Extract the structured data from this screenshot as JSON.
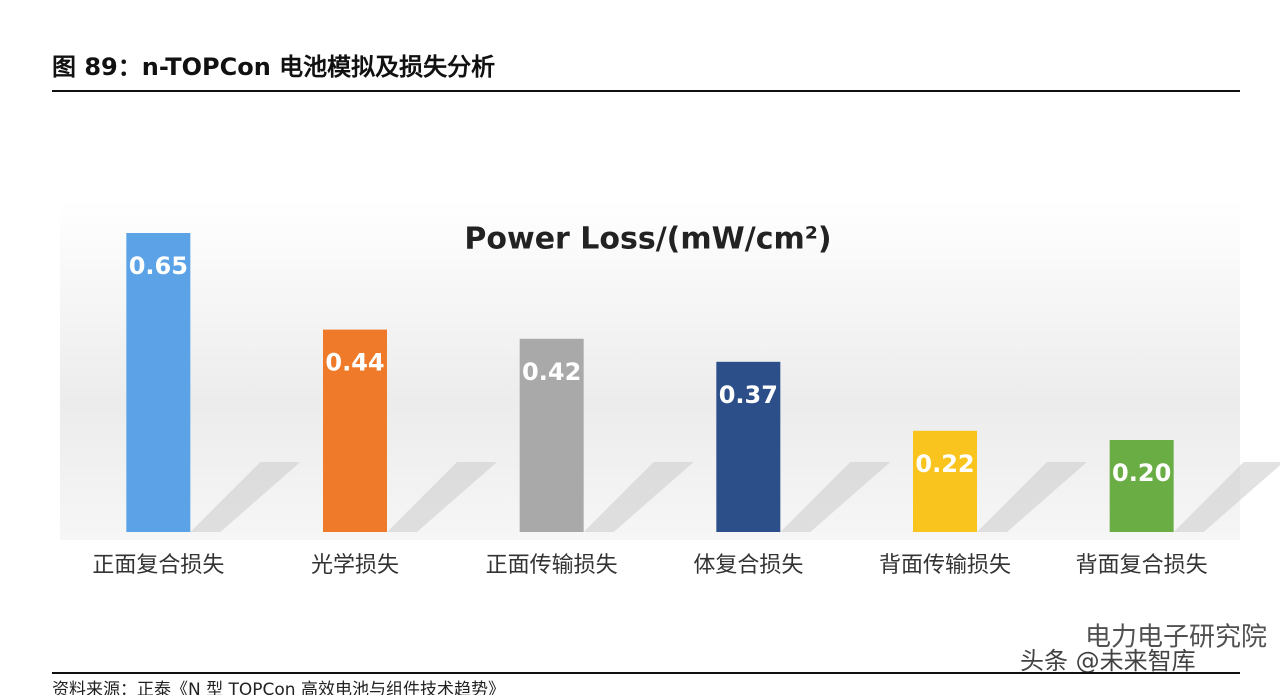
{
  "header": {
    "title": "图 89：n-TOPCon 电池模拟及损失分析"
  },
  "chart_data": {
    "type": "bar",
    "title": "Power Loss/(mW/cm²)",
    "categories": [
      "正面复合损失",
      "光学损失",
      "正面传输损失",
      "体复合损失",
      "背面传输损失",
      "背面复合损失"
    ],
    "values": [
      0.65,
      0.44,
      0.42,
      0.37,
      0.22,
      0.2
    ],
    "value_labels": [
      "0.65",
      "0.44",
      "0.42",
      "0.37",
      "0.22",
      "0.20"
    ],
    "colors": [
      "#5ba3e6",
      "#ee7a2a",
      "#a9a9a9",
      "#2c4f8a",
      "#f8c41d",
      "#6aad45"
    ]
  },
  "footer": {
    "source": "资料来源：正泰《N 型 TOPCon 高效电池与组件技术趋势》"
  },
  "watermark": {
    "account": "电力电子研究院",
    "platform": "头条 @未来智库"
  }
}
